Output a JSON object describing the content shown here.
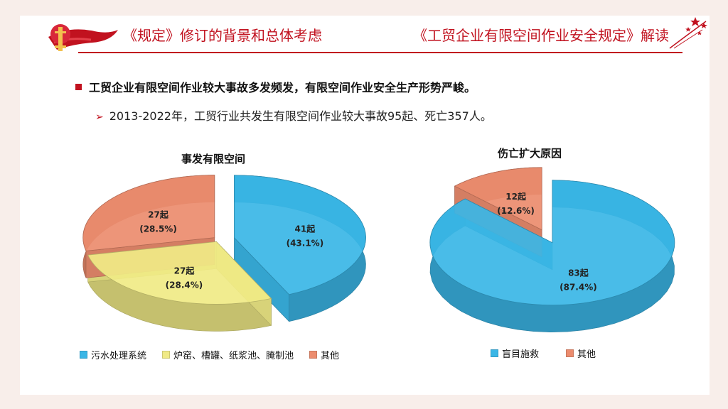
{
  "header": {
    "left_title": "《规定》修订的背景和总体考虑",
    "right_title": "《工贸企业有限空间作业安全规定》解读"
  },
  "content": {
    "bullet": "工贸企业有限空间作业较大事故多发频发，有限空间作业安全生产形势严峻。",
    "sub_bullet": "2013-2022年，工贸行业共发生有限空间作业较大事故95起、死亡357人。"
  },
  "colors": {
    "accent": "#c1121f",
    "blue": "#3ab6e6",
    "yellow": "#f0ea86",
    "orange": "#ec8c6e"
  },
  "icons": [
    "party-emblem-icon",
    "stars-icon",
    "bullet-square-icon",
    "arrow-bullet-icon"
  ],
  "chart_data": [
    {
      "type": "pie",
      "title": "事发有限空间",
      "legend_position": "bottom",
      "series": [
        {
          "name": "污水处理系统",
          "value": 41,
          "label": "41起",
          "percent": "(43.1%)",
          "color": "#3ab6e6"
        },
        {
          "name": "炉窑、槽罐、纸浆池、腌制池",
          "value": 27,
          "label": "27起",
          "percent": "(28.4%)",
          "color": "#f0ea86"
        },
        {
          "name": "其他",
          "value": 27,
          "label": "27起",
          "percent": "(28.5%)",
          "color": "#ec8c6e"
        }
      ]
    },
    {
      "type": "pie",
      "title": "伤亡扩大原因",
      "legend_position": "bottom",
      "series": [
        {
          "name": "盲目施救",
          "value": 83,
          "label": "83起",
          "percent": "(87.4%)",
          "color": "#3ab6e6"
        },
        {
          "name": "其他",
          "value": 12,
          "label": "12起",
          "percent": "(12.6%)",
          "color": "#ec8c6e"
        }
      ]
    }
  ]
}
